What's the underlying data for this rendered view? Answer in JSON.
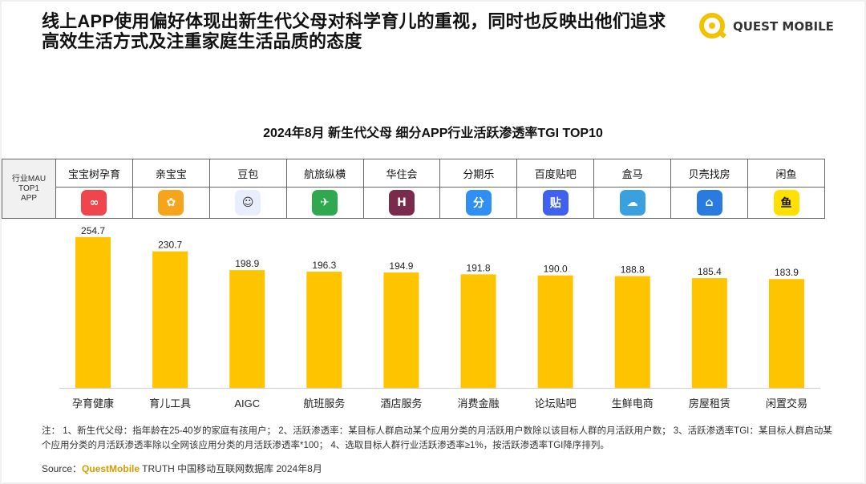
{
  "headline": "线上APP使用偏好体现出新生代父母对科学育儿的重视，同时也反映出他们追求高效生活方式及注重家庭生活品质的态度",
  "logo": {
    "text": "QUEST MOBILE",
    "icon": "quest-mobile-logo-icon",
    "color": "#f2c200"
  },
  "table": {
    "header": [
      "行业MAU",
      "TOP1",
      "APP"
    ],
    "apps": [
      {
        "name": "宝宝树孕育",
        "icon": "baobaoshu-app-icon",
        "color": "#f0454d",
        "glyph": "∞"
      },
      {
        "name": "亲宝宝",
        "icon": "qinbaobao-app-icon",
        "color": "#f6a41c",
        "glyph": "✿"
      },
      {
        "name": "豆包",
        "icon": "doubao-app-icon",
        "color": "#e8eefc",
        "glyph": "☺"
      },
      {
        "name": "航旅纵横",
        "icon": "hanglvzongheng-app-icon",
        "color": "#2fa84f",
        "glyph": "✈"
      },
      {
        "name": "华住会",
        "icon": "huazhuhui-app-icon",
        "color": "#7a2a4a",
        "glyph": "H"
      },
      {
        "name": "分期乐",
        "icon": "fenqile-app-icon",
        "color": "#2f8ff5",
        "glyph": "分"
      },
      {
        "name": "百度贴吧",
        "icon": "baidutieba-app-icon",
        "color": "#4060f0",
        "glyph": "贴"
      },
      {
        "name": "盒马",
        "icon": "hema-app-icon",
        "color": "#3aa0e0",
        "glyph": "☁"
      },
      {
        "name": "贝壳找房",
        "icon": "beike-app-icon",
        "color": "#2a7be0",
        "glyph": "⌂"
      },
      {
        "name": "闲鱼",
        "icon": "xianyu-app-icon",
        "color": "#ffe000",
        "glyph": "鱼"
      }
    ]
  },
  "chart_data": {
    "type": "bar",
    "title": "2024年8月  新生代父母 细分APP行业活跃渗透率TGI TOP10",
    "categories": [
      "孕育健康",
      "育儿工具",
      "AIGC",
      "航班服务",
      "酒店服务",
      "消费金融",
      "论坛贴吧",
      "生鲜电商",
      "房屋租赁",
      "闲置交易"
    ],
    "values": [
      254.7,
      230.7,
      198.9,
      196.3,
      194.9,
      191.8,
      190.0,
      188.8,
      185.4,
      183.9
    ],
    "value_labels": [
      "254.7",
      "230.7",
      "198.9",
      "196.3",
      "194.9",
      "191.8",
      "190.0",
      "188.8",
      "185.4",
      "183.9"
    ],
    "ylim": [
      0,
      260
    ],
    "bar_color": "#ffc400",
    "grid": false,
    "xlabel": "",
    "ylabel": ""
  },
  "note": "注：  1、新生代父母：指年龄在25-40岁的家庭有孩用户；  2、活跃渗透率：某目标人群启动某个应用分类的月活跃用户数除以该目标人群的月活跃用户数；  3、活跃渗透率TGI：某目标人群启动某个应用分类的月活跃渗透率除以全网该应用分类的月活跃渗透率*100；  4、选取目标人群行业活跃渗透率≥1%，按活跃渗透率TGI降序排列。",
  "source": {
    "label": "Source：",
    "brand": "QuestMobile",
    "rest": " TRUTH 中国移动互联网数据库 2024年8月"
  }
}
